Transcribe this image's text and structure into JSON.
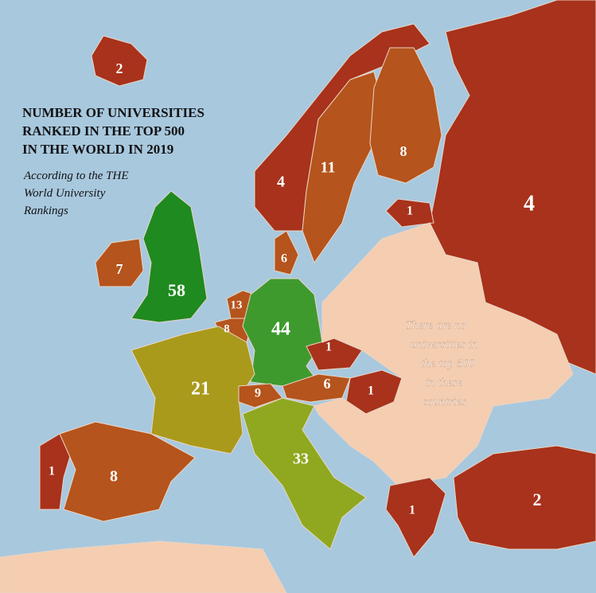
{
  "title": [
    "NUMBER OF UNIVERSITIES",
    "RANKED IN THE TOP 500",
    "IN THE WORLD IN 2019"
  ],
  "subtitle": [
    "According to the THE",
    "World University",
    "Rankings"
  ],
  "annotation": [
    "There are no",
    "universities in",
    "the top 500",
    "in these",
    "countries"
  ],
  "regions": [
    {
      "value": 2
    },
    {
      "value": 4
    },
    {
      "value": 11
    },
    {
      "value": 8
    },
    {
      "value": 4
    },
    {
      "value": 1
    },
    {
      "value": 6
    },
    {
      "value": 7
    },
    {
      "value": 58
    },
    {
      "value": 13
    },
    {
      "value": 8
    },
    {
      "value": 44
    },
    {
      "value": 1
    },
    {
      "value": 21
    },
    {
      "value": 9
    },
    {
      "value": 6
    },
    {
      "value": 1
    },
    {
      "value": 1
    },
    {
      "value": 8
    },
    {
      "value": 33
    },
    {
      "value": 1
    },
    {
      "value": 2
    }
  ]
}
